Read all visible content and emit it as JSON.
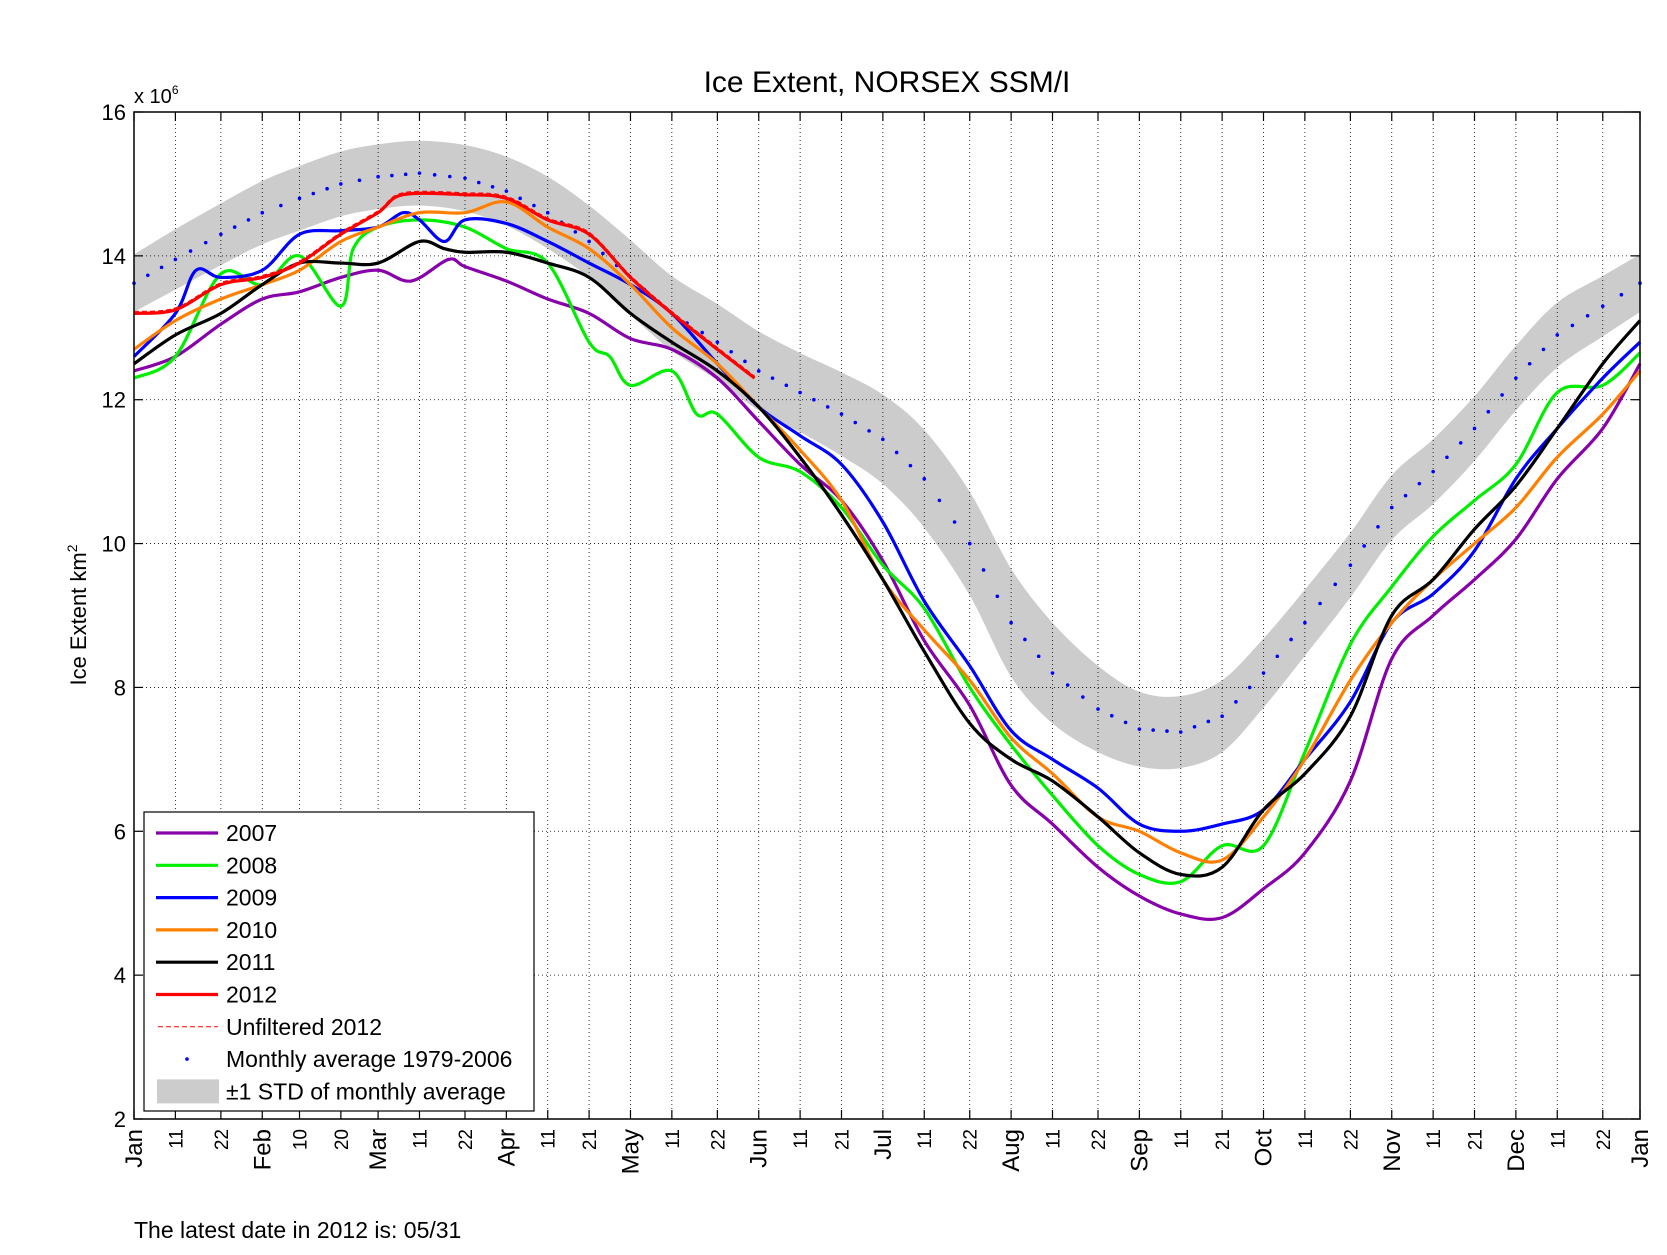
{
  "chart_data": {
    "type": "line",
    "title": "Ice Extent, NORSEX SSM/I",
    "ylabel": "Ice Extent km",
    "ylabel_superscript": "2",
    "y_multiplier": "x 10",
    "y_multiplier_exp": "6",
    "ylim": [
      2,
      16
    ],
    "y_ticks": [
      2,
      4,
      6,
      8,
      10,
      12,
      14,
      16
    ],
    "xlim": [
      "01/01",
      "12/31"
    ],
    "grid": true,
    "legend_position": "bottom-left",
    "x_ticks": [
      {
        "label": "Jan",
        "date": "01/01"
      },
      {
        "label": "11",
        "date": "01/11"
      },
      {
        "label": "22",
        "date": "01/22"
      },
      {
        "label": "Feb",
        "date": "02/01"
      },
      {
        "label": "10",
        "date": "02/10"
      },
      {
        "label": "20",
        "date": "02/20"
      },
      {
        "label": "Mar",
        "date": "03/01"
      },
      {
        "label": "11",
        "date": "03/11"
      },
      {
        "label": "22",
        "date": "03/22"
      },
      {
        "label": "Apr",
        "date": "04/01"
      },
      {
        "label": "11",
        "date": "04/11"
      },
      {
        "label": "21",
        "date": "04/21"
      },
      {
        "label": "May",
        "date": "05/01"
      },
      {
        "label": "11",
        "date": "05/11"
      },
      {
        "label": "22",
        "date": "05/22"
      },
      {
        "label": "Jun",
        "date": "06/01"
      },
      {
        "label": "11",
        "date": "06/11"
      },
      {
        "label": "21",
        "date": "06/21"
      },
      {
        "label": "Jul",
        "date": "07/01"
      },
      {
        "label": "11",
        "date": "07/11"
      },
      {
        "label": "22",
        "date": "07/22"
      },
      {
        "label": "Aug",
        "date": "08/01"
      },
      {
        "label": "11",
        "date": "08/11"
      },
      {
        "label": "22",
        "date": "08/22"
      },
      {
        "label": "Sep",
        "date": "09/01"
      },
      {
        "label": "11",
        "date": "09/11"
      },
      {
        "label": "21",
        "date": "09/21"
      },
      {
        "label": "Oct",
        "date": "10/01"
      },
      {
        "label": "11",
        "date": "10/11"
      },
      {
        "label": "22",
        "date": "10/22"
      },
      {
        "label": "Nov",
        "date": "11/01"
      },
      {
        "label": "11",
        "date": "11/11"
      },
      {
        "label": "21",
        "date": "11/21"
      },
      {
        "label": "Dec",
        "date": "12/01"
      },
      {
        "label": "11",
        "date": "12/11"
      },
      {
        "label": "22",
        "date": "12/22"
      },
      {
        "label": "Jan",
        "date": "12/31"
      }
    ],
    "monthly_average": {
      "name": "Monthly average 1979-2006",
      "color": "#0000ff",
      "points": [
        [
          "01/01",
          13.62,
          0.4
        ],
        [
          "01/11",
          13.95,
          0.42
        ],
        [
          "01/22",
          14.3,
          0.43
        ],
        [
          "02/01",
          14.6,
          0.44
        ],
        [
          "02/10",
          14.8,
          0.45
        ],
        [
          "02/20",
          15.0,
          0.45
        ],
        [
          "03/01",
          15.1,
          0.45
        ],
        [
          "03/11",
          15.15,
          0.45
        ],
        [
          "03/22",
          15.08,
          0.46
        ],
        [
          "04/01",
          14.9,
          0.48
        ],
        [
          "04/11",
          14.6,
          0.5
        ],
        [
          "04/21",
          14.2,
          0.5
        ],
        [
          "05/01",
          13.7,
          0.52
        ],
        [
          "05/11",
          13.2,
          0.52
        ],
        [
          "05/22",
          12.8,
          0.53
        ],
        [
          "06/01",
          12.4,
          0.55
        ],
        [
          "06/11",
          12.1,
          0.55
        ],
        [
          "06/21",
          11.8,
          0.58
        ],
        [
          "07/01",
          11.45,
          0.62
        ],
        [
          "07/11",
          10.9,
          0.68
        ],
        [
          "07/22",
          10.0,
          0.72
        ],
        [
          "08/01",
          8.9,
          0.75
        ],
        [
          "08/11",
          8.2,
          0.7
        ],
        [
          "08/22",
          7.7,
          0.6
        ],
        [
          "09/01",
          7.42,
          0.52
        ],
        [
          "09/11",
          7.38,
          0.5
        ],
        [
          "09/21",
          7.6,
          0.5
        ],
        [
          "10/01",
          8.2,
          0.48
        ],
        [
          "10/11",
          8.9,
          0.46
        ],
        [
          "10/22",
          9.7,
          0.45
        ],
        [
          "11/01",
          10.5,
          0.45
        ],
        [
          "11/11",
          11.0,
          0.45
        ],
        [
          "11/21",
          11.6,
          0.45
        ],
        [
          "12/01",
          12.3,
          0.45
        ],
        [
          "12/11",
          12.9,
          0.45
        ],
        [
          "12/22",
          13.3,
          0.42
        ],
        [
          "12/31",
          13.62,
          0.4
        ]
      ]
    },
    "std_label": "±1 STD of monthly average",
    "std_color": "#cccccc",
    "unfiltered_label": "Unfiltered 2012",
    "series": [
      {
        "name": "2007",
        "color": "#8800aa",
        "points": [
          [
            "01/01",
            12.4
          ],
          [
            "01/11",
            12.6
          ],
          [
            "01/22",
            13.05
          ],
          [
            "02/01",
            13.4
          ],
          [
            "02/10",
            13.5
          ],
          [
            "02/20",
            13.7
          ],
          [
            "03/01",
            13.8
          ],
          [
            "03/09",
            13.65
          ],
          [
            "03/18",
            13.95
          ],
          [
            "03/22",
            13.85
          ],
          [
            "04/01",
            13.65
          ],
          [
            "04/11",
            13.4
          ],
          [
            "04/21",
            13.2
          ],
          [
            "05/01",
            12.85
          ],
          [
            "05/11",
            12.7
          ],
          [
            "05/22",
            12.3
          ],
          [
            "06/01",
            11.7
          ],
          [
            "06/11",
            11.1
          ],
          [
            "06/21",
            10.6
          ],
          [
            "07/01",
            9.76
          ],
          [
            "07/11",
            8.65
          ],
          [
            "07/22",
            7.75
          ],
          [
            "08/01",
            6.64
          ],
          [
            "08/11",
            6.1
          ],
          [
            "08/22",
            5.5
          ],
          [
            "09/01",
            5.1
          ],
          [
            "09/11",
            4.85
          ],
          [
            "09/21",
            4.8
          ],
          [
            "10/01",
            5.2
          ],
          [
            "10/11",
            5.7
          ],
          [
            "10/22",
            6.7
          ],
          [
            "11/01",
            8.4
          ],
          [
            "11/11",
            9.0
          ],
          [
            "11/21",
            9.5
          ],
          [
            "12/01",
            10.06
          ],
          [
            "12/11",
            10.9
          ],
          [
            "12/22",
            11.6
          ],
          [
            "12/31",
            12.5
          ]
        ]
      },
      {
        "name": "2008",
        "color": "#00ee00",
        "points": [
          [
            "01/01",
            12.3
          ],
          [
            "01/11",
            12.6
          ],
          [
            "01/22",
            13.75
          ],
          [
            "02/01",
            13.6
          ],
          [
            "02/10",
            14.0
          ],
          [
            "02/20",
            13.3
          ],
          [
            "02/23",
            14.1
          ],
          [
            "03/01",
            14.4
          ],
          [
            "03/11",
            14.5
          ],
          [
            "03/22",
            14.4
          ],
          [
            "04/01",
            14.1
          ],
          [
            "04/11",
            13.9
          ],
          [
            "04/21",
            12.8
          ],
          [
            "04/26",
            12.6
          ],
          [
            "05/01",
            12.2
          ],
          [
            "05/11",
            12.4
          ],
          [
            "05/17",
            11.8
          ],
          [
            "05/22",
            11.8
          ],
          [
            "06/01",
            11.2
          ],
          [
            "06/11",
            11.0
          ],
          [
            "06/21",
            10.5
          ],
          [
            "07/01",
            9.7
          ],
          [
            "07/11",
            9.1
          ],
          [
            "07/22",
            8.0
          ],
          [
            "08/01",
            7.2
          ],
          [
            "08/11",
            6.5
          ],
          [
            "08/22",
            5.8
          ],
          [
            "09/01",
            5.4
          ],
          [
            "09/11",
            5.3
          ],
          [
            "09/21",
            5.8
          ],
          [
            "10/01",
            5.8
          ],
          [
            "10/11",
            7.1
          ],
          [
            "10/22",
            8.6
          ],
          [
            "11/01",
            9.4
          ],
          [
            "11/11",
            10.1
          ],
          [
            "11/21",
            10.6
          ],
          [
            "12/01",
            11.1
          ],
          [
            "12/11",
            12.1
          ],
          [
            "12/22",
            12.2
          ],
          [
            "12/31",
            12.65
          ]
        ]
      },
      {
        "name": "2009",
        "color": "#0000ff",
        "points": [
          [
            "01/01",
            12.6
          ],
          [
            "01/11",
            13.2
          ],
          [
            "01/16",
            13.8
          ],
          [
            "01/22",
            13.7
          ],
          [
            "02/01",
            13.8
          ],
          [
            "02/10",
            14.3
          ],
          [
            "02/20",
            14.35
          ],
          [
            "03/01",
            14.4
          ],
          [
            "03/07",
            14.6
          ],
          [
            "03/11",
            14.5
          ],
          [
            "03/17",
            14.2
          ],
          [
            "03/22",
            14.5
          ],
          [
            "04/01",
            14.45
          ],
          [
            "04/11",
            14.2
          ],
          [
            "04/21",
            13.9
          ],
          [
            "05/01",
            13.6
          ],
          [
            "05/11",
            13.2
          ],
          [
            "05/22",
            12.5
          ],
          [
            "06/01",
            11.9
          ],
          [
            "06/11",
            11.5
          ],
          [
            "06/21",
            11.1
          ],
          [
            "07/01",
            10.3
          ],
          [
            "07/11",
            9.2
          ],
          [
            "07/22",
            8.3
          ],
          [
            "08/01",
            7.4
          ],
          [
            "08/11",
            7.0
          ],
          [
            "08/22",
            6.6
          ],
          [
            "09/01",
            6.1
          ],
          [
            "09/11",
            6.0
          ],
          [
            "09/21",
            6.1
          ],
          [
            "10/01",
            6.3
          ],
          [
            "10/11",
            7.0
          ],
          [
            "10/22",
            7.8
          ],
          [
            "11/01",
            8.9
          ],
          [
            "11/11",
            9.3
          ],
          [
            "11/21",
            9.9
          ],
          [
            "12/01",
            10.9
          ],
          [
            "12/11",
            11.6
          ],
          [
            "12/22",
            12.3
          ],
          [
            "12/31",
            12.8
          ]
        ]
      },
      {
        "name": "2010",
        "color": "#ff8000",
        "points": [
          [
            "01/01",
            12.7
          ],
          [
            "01/11",
            13.1
          ],
          [
            "01/22",
            13.4
          ],
          [
            "02/01",
            13.6
          ],
          [
            "02/10",
            13.8
          ],
          [
            "02/20",
            14.2
          ],
          [
            "03/01",
            14.4
          ],
          [
            "03/11",
            14.6
          ],
          [
            "03/22",
            14.6
          ],
          [
            "04/01",
            14.75
          ],
          [
            "04/11",
            14.4
          ],
          [
            "04/21",
            14.1
          ],
          [
            "05/01",
            13.6
          ],
          [
            "05/11",
            13.0
          ],
          [
            "05/22",
            12.5
          ],
          [
            "06/01",
            11.9
          ],
          [
            "06/11",
            11.3
          ],
          [
            "06/21",
            10.6
          ],
          [
            "07/01",
            9.5
          ],
          [
            "07/11",
            8.8
          ],
          [
            "07/22",
            8.1
          ],
          [
            "08/01",
            7.3
          ],
          [
            "08/11",
            6.8
          ],
          [
            "08/22",
            6.2
          ],
          [
            "09/01",
            6.0
          ],
          [
            "09/11",
            5.7
          ],
          [
            "09/21",
            5.6
          ],
          [
            "10/01",
            6.2
          ],
          [
            "10/11",
            7.0
          ],
          [
            "10/22",
            8.1
          ],
          [
            "11/01",
            8.9
          ],
          [
            "11/11",
            9.5
          ],
          [
            "11/21",
            10.0
          ],
          [
            "12/01",
            10.5
          ],
          [
            "12/11",
            11.2
          ],
          [
            "12/22",
            11.8
          ],
          [
            "12/31",
            12.4
          ]
        ]
      },
      {
        "name": "2011",
        "color": "#000000",
        "points": [
          [
            "01/01",
            12.5
          ],
          [
            "01/11",
            12.9
          ],
          [
            "01/22",
            13.2
          ],
          [
            "02/01",
            13.6
          ],
          [
            "02/10",
            13.9
          ],
          [
            "02/20",
            13.9
          ],
          [
            "03/01",
            13.9
          ],
          [
            "03/11",
            14.2
          ],
          [
            "03/17",
            14.1
          ],
          [
            "03/22",
            14.05
          ],
          [
            "04/01",
            14.05
          ],
          [
            "04/11",
            13.9
          ],
          [
            "04/21",
            13.7
          ],
          [
            "05/01",
            13.2
          ],
          [
            "05/11",
            12.8
          ],
          [
            "05/22",
            12.4
          ],
          [
            "06/01",
            11.9
          ],
          [
            "06/11",
            11.2
          ],
          [
            "06/21",
            10.4
          ],
          [
            "07/01",
            9.5
          ],
          [
            "07/11",
            8.5
          ],
          [
            "07/22",
            7.5
          ],
          [
            "08/01",
            7.0
          ],
          [
            "08/11",
            6.7
          ],
          [
            "08/22",
            6.2
          ],
          [
            "09/01",
            5.7
          ],
          [
            "09/11",
            5.4
          ],
          [
            "09/21",
            5.5
          ],
          [
            "10/01",
            6.3
          ],
          [
            "10/11",
            6.8
          ],
          [
            "10/22",
            7.6
          ],
          [
            "11/01",
            9.0
          ],
          [
            "11/11",
            9.5
          ],
          [
            "11/21",
            10.2
          ],
          [
            "12/01",
            10.8
          ],
          [
            "12/11",
            11.6
          ],
          [
            "12/22",
            12.5
          ],
          [
            "12/31",
            13.1
          ]
        ]
      },
      {
        "name": "2012",
        "color": "#ff0000",
        "points": [
          [
            "01/01",
            13.2
          ],
          [
            "01/11",
            13.25
          ],
          [
            "01/22",
            13.6
          ],
          [
            "02/01",
            13.7
          ],
          [
            "02/10",
            13.9
          ],
          [
            "02/20",
            14.3
          ],
          [
            "03/01",
            14.6
          ],
          [
            "03/07",
            14.85
          ],
          [
            "03/22",
            14.85
          ],
          [
            "04/01",
            14.8
          ],
          [
            "04/11",
            14.5
          ],
          [
            "04/21",
            14.3
          ],
          [
            "05/01",
            13.7
          ],
          [
            "05/11",
            13.2
          ],
          [
            "05/22",
            12.7
          ],
          [
            "05/31",
            12.3
          ]
        ]
      }
    ]
  },
  "footer": {
    "text": "The latest date in 2012 is: 05/31"
  }
}
